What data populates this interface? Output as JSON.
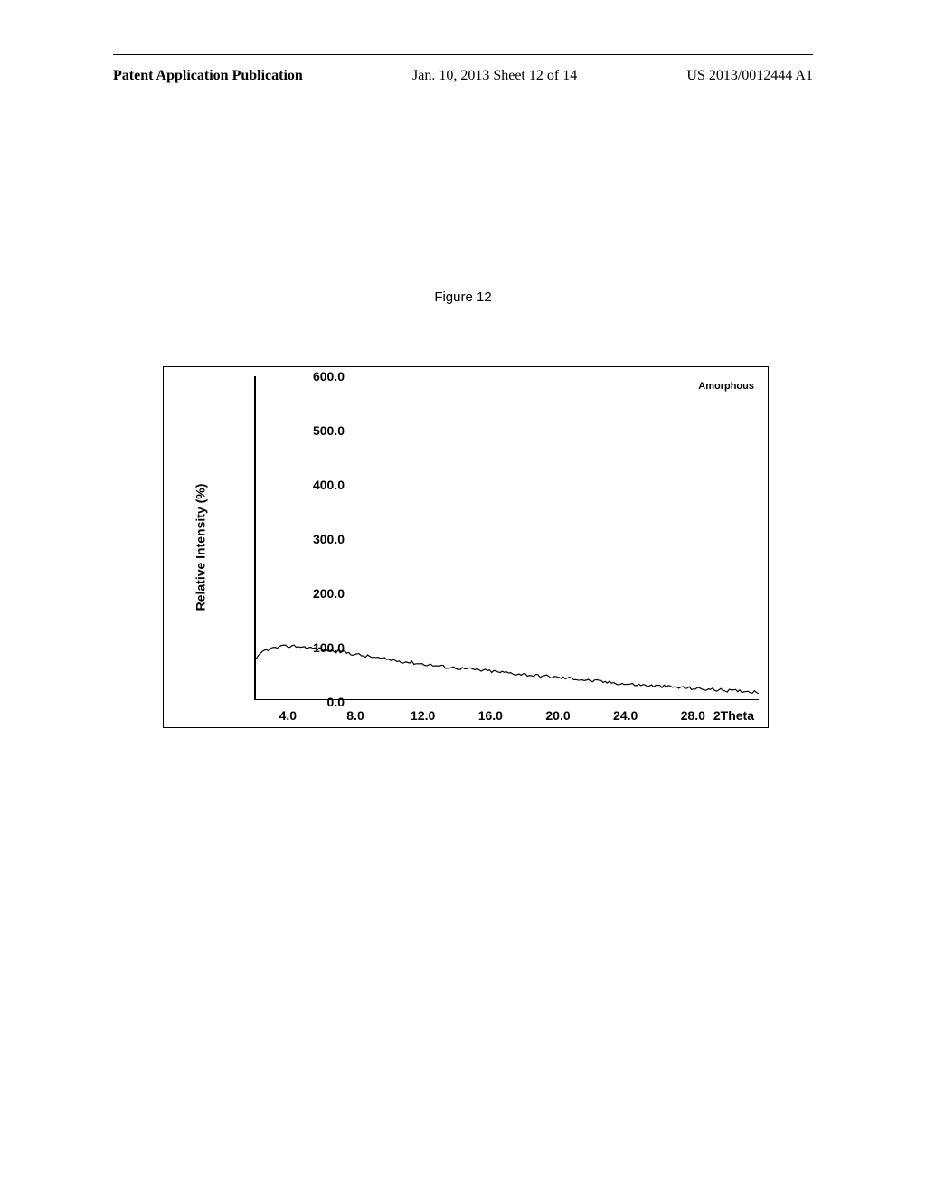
{
  "header": {
    "left": "Patent Application Publication",
    "center": "Jan. 10, 2013   Sheet 12 of 14",
    "right": "US 2013/0012444 A1"
  },
  "figure_label": "Figure 12",
  "chart": {
    "type": "line",
    "legend_label": "Amorphous",
    "ylabel": "Relative Intensity (%)",
    "xlabel": "2Theta",
    "ylim": [
      0,
      600
    ],
    "xlim": [
      2,
      32
    ],
    "y_ticks": [
      0.0,
      100.0,
      200.0,
      300.0,
      400.0,
      500.0,
      600.0
    ],
    "y_tick_labels": [
      "0.0",
      "100.0",
      "200.0",
      "300.0",
      "400.0",
      "500.0",
      "600.0"
    ],
    "x_ticks": [
      4.0,
      8.0,
      12.0,
      16.0,
      20.0,
      24.0,
      28.0
    ],
    "x_tick_labels": [
      "4.0",
      "8.0",
      "12.0",
      "16.0",
      "20.0",
      "24.0",
      "28.0"
    ],
    "line_color": "#000000",
    "line_width": 1.2,
    "background_color": "#ffffff",
    "data": [
      [
        2.0,
        70
      ],
      [
        2.5,
        90
      ],
      [
        3.0,
        95
      ],
      [
        3.5,
        98
      ],
      [
        4.0,
        100
      ],
      [
        4.5,
        100
      ],
      [
        5.0,
        98
      ],
      [
        5.5,
        96
      ],
      [
        6.0,
        94
      ],
      [
        6.5,
        92
      ],
      [
        7.0,
        90
      ],
      [
        7.5,
        88
      ],
      [
        8.0,
        85
      ],
      [
        8.5,
        82
      ],
      [
        9.0,
        80
      ],
      [
        9.5,
        77
      ],
      [
        10.0,
        75
      ],
      [
        10.5,
        73
      ],
      [
        11.0,
        71
      ],
      [
        11.5,
        69
      ],
      [
        12.0,
        67
      ],
      [
        12.5,
        65
      ],
      [
        13.0,
        63
      ],
      [
        13.5,
        61
      ],
      [
        14.0,
        60
      ],
      [
        14.5,
        58
      ],
      [
        15.0,
        57
      ],
      [
        15.5,
        55
      ],
      [
        16.0,
        54
      ],
      [
        16.5,
        52
      ],
      [
        17.0,
        51
      ],
      [
        17.5,
        49
      ],
      [
        18.0,
        48
      ],
      [
        18.5,
        46
      ],
      [
        19.0,
        45
      ],
      [
        19.5,
        44
      ],
      [
        20.0,
        42
      ],
      [
        20.5,
        41
      ],
      [
        21.0,
        40
      ],
      [
        21.5,
        38
      ],
      [
        22.0,
        36
      ],
      [
        22.5,
        35
      ],
      [
        23.0,
        33
      ],
      [
        23.5,
        32
      ],
      [
        24.0,
        30
      ],
      [
        24.5,
        29
      ],
      [
        25.0,
        28
      ],
      [
        25.5,
        27
      ],
      [
        26.0,
        26
      ],
      [
        26.5,
        25
      ],
      [
        27.0,
        24
      ],
      [
        27.5,
        23
      ],
      [
        28.0,
        22
      ],
      [
        28.5,
        21
      ],
      [
        29.0,
        20
      ],
      [
        29.5,
        19
      ],
      [
        30.0,
        18
      ],
      [
        30.5,
        17
      ],
      [
        31.0,
        17
      ],
      [
        31.5,
        16
      ],
      [
        32.0,
        15
      ]
    ],
    "noise_amplitude": 3
  }
}
